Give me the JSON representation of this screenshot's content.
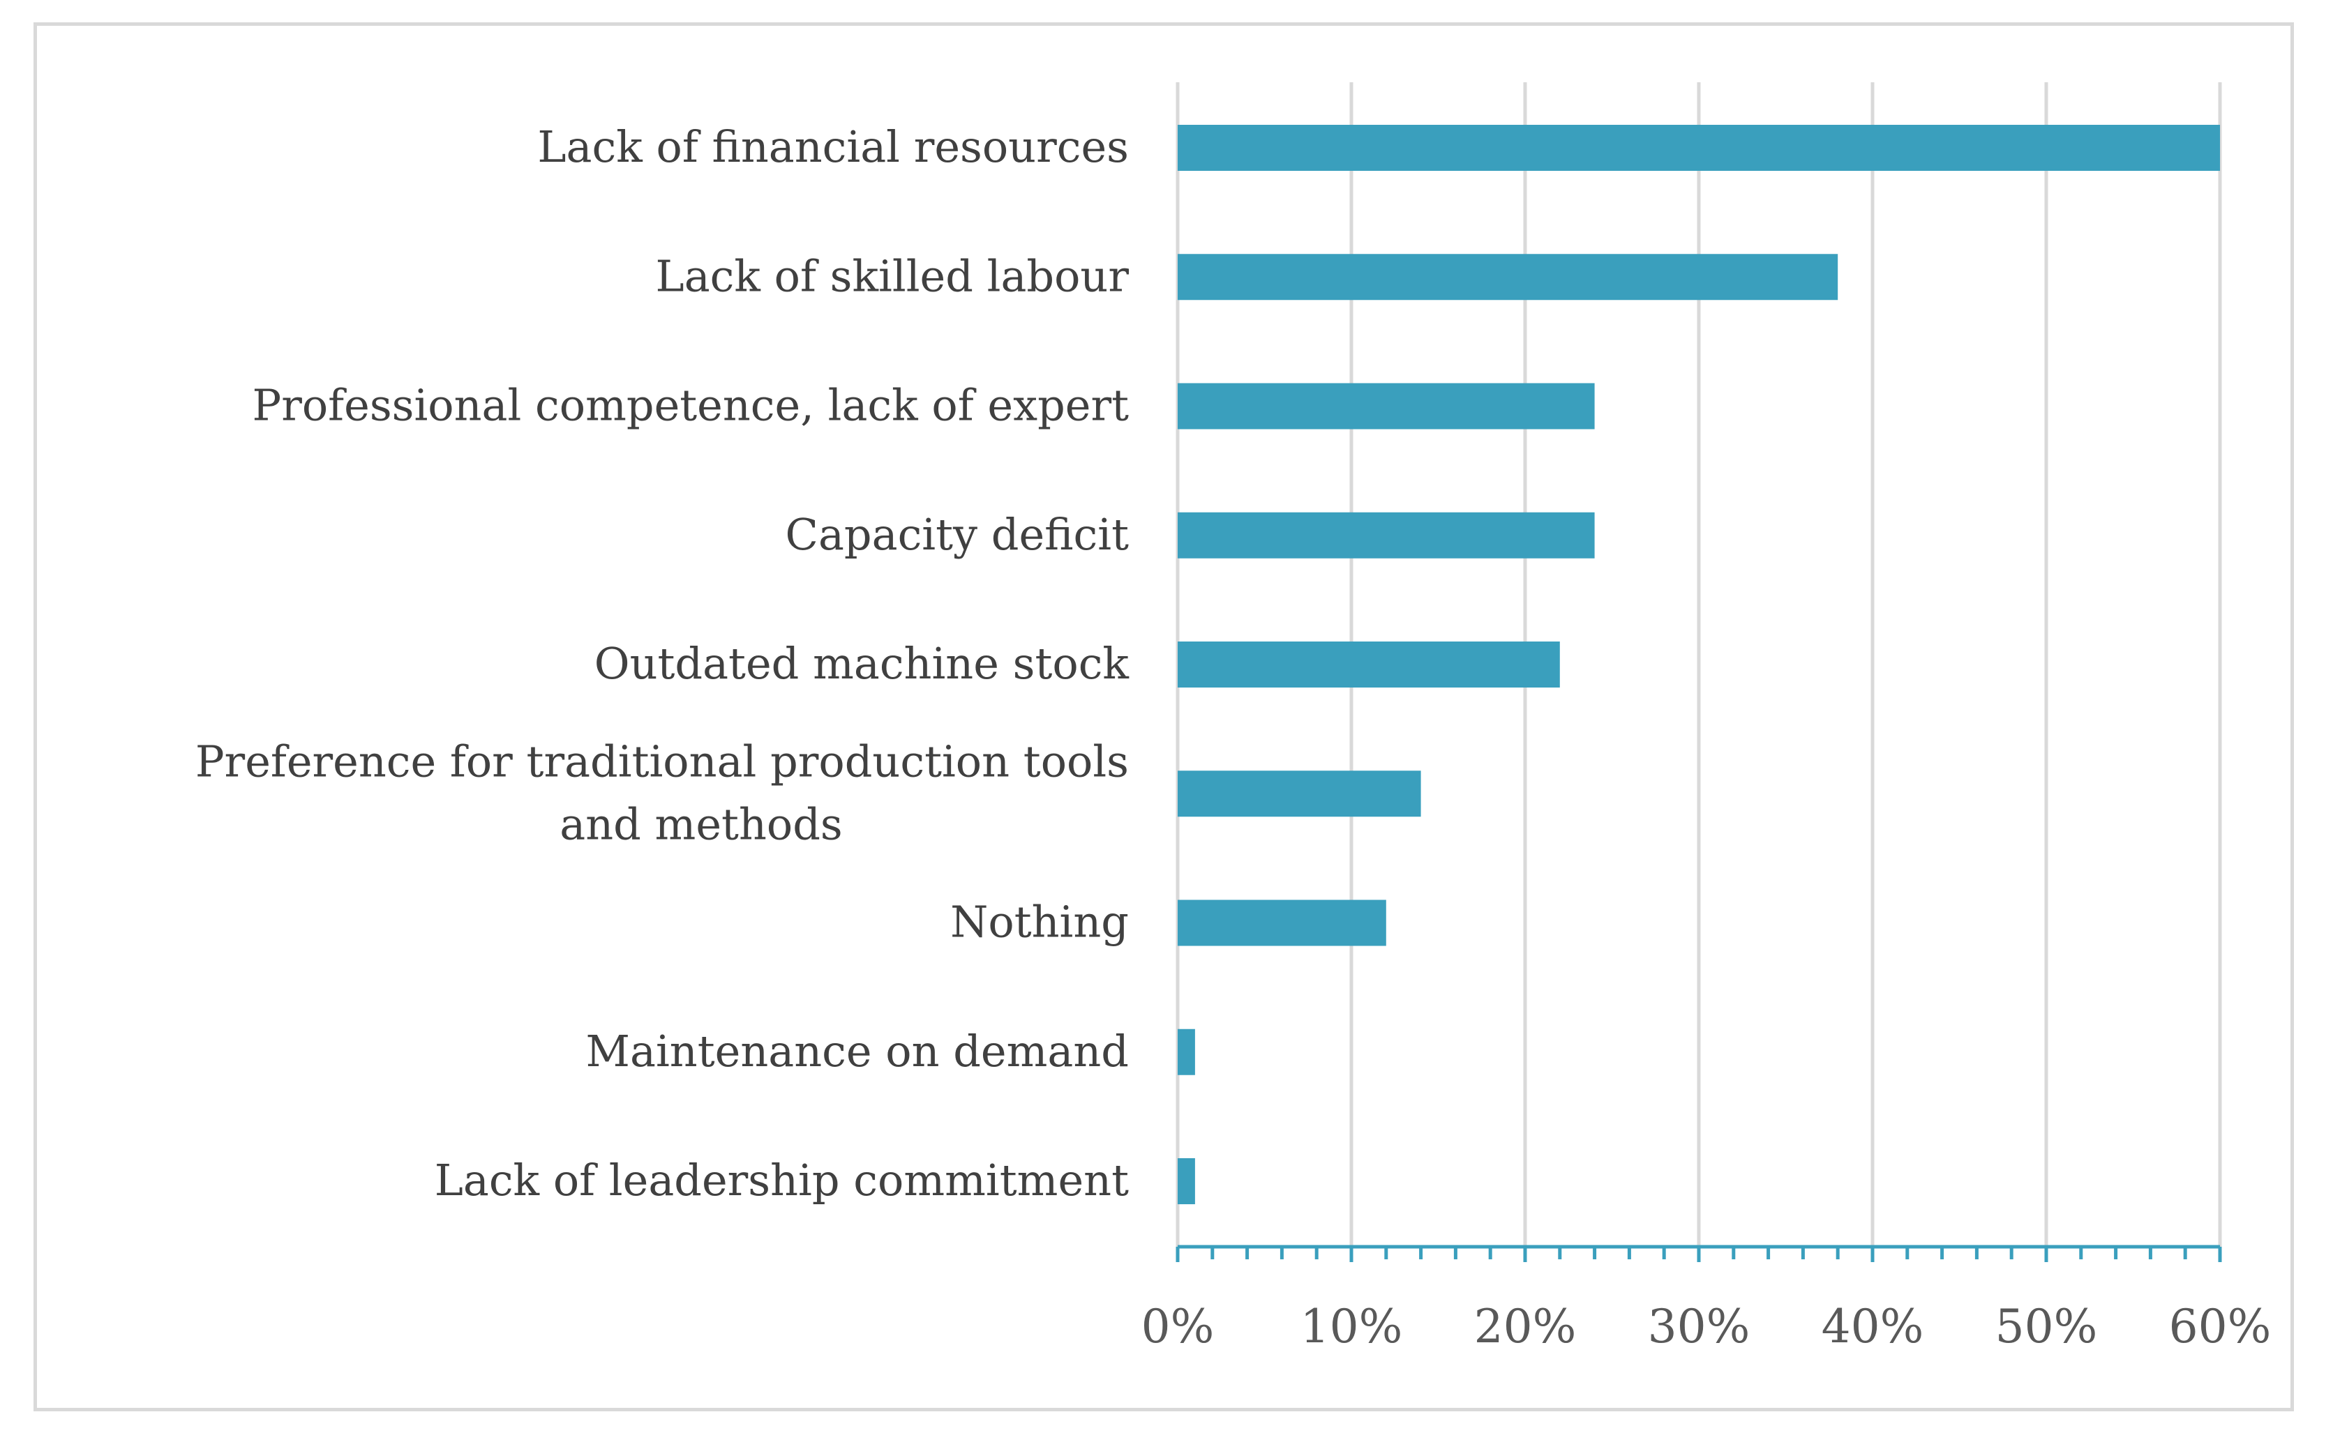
{
  "colors": {
    "bar": "#3a9fbd",
    "axis": "#3a9fbd",
    "grid": "#d9d9d9",
    "frame": "#d9d9d9",
    "label": "#404040",
    "tick_label": "#595959"
  },
  "chart_data": {
    "type": "bar",
    "orientation": "horizontal",
    "title": "",
    "xlabel": "",
    "ylabel": "",
    "xlim": [
      0,
      60
    ],
    "x_ticks": [
      "0%",
      "10%",
      "20%",
      "30%",
      "40%",
      "50%",
      "60%"
    ],
    "grid": true,
    "legend": "none",
    "categories": [
      "Lack of financial resources",
      "Lack of skilled labour",
      "Professional competence, lack of expert",
      "Capacity deficit",
      "Outdated machine stock",
      "Preference for traditional production tools and methods",
      "Nothing",
      "Maintenance on demand",
      "Lack of leadership commitment"
    ],
    "values": [
      60,
      38,
      24,
      24,
      22,
      14,
      12,
      1,
      1
    ],
    "unit": "%"
  }
}
